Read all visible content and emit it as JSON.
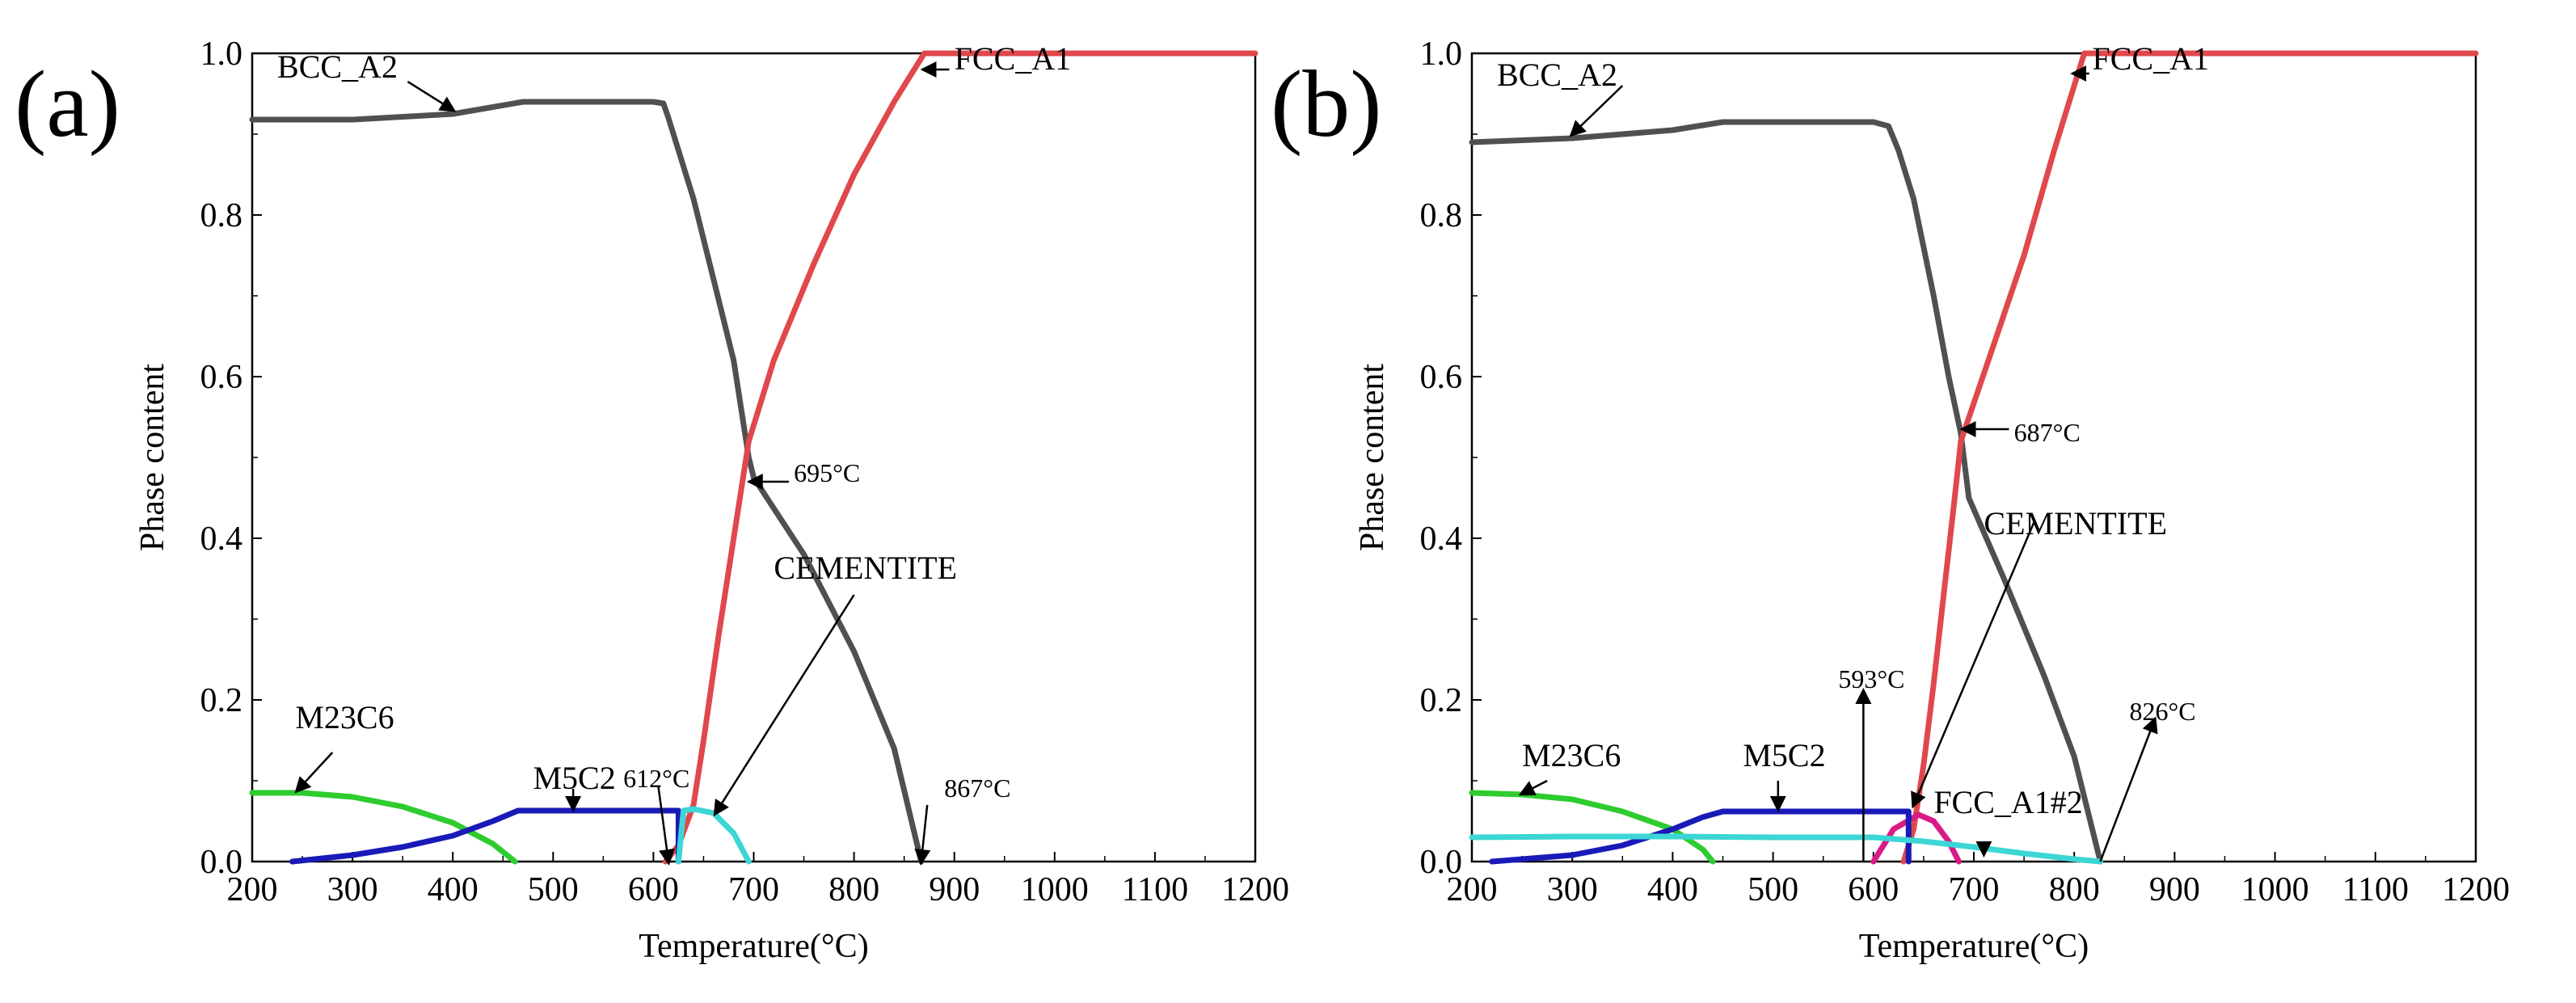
{
  "chart_data": [
    {
      "panel_label": "(a)",
      "type": "line",
      "xlabel": "Temperature(°C)",
      "ylabel": "Phase content",
      "xlim": [
        200,
        1200
      ],
      "ylim": [
        0,
        1.0
      ],
      "xticks": [
        "200",
        "300",
        "400",
        "500",
        "600",
        "700",
        "800",
        "900",
        "1000",
        "1100",
        "1200"
      ],
      "yticks": [
        "0.0",
        "0.2",
        "0.4",
        "0.6",
        "0.8",
        "1.0"
      ],
      "series": [
        {
          "name": "BCC_A2",
          "color": "#505050",
          "points": [
            [
              200,
              0.918
            ],
            [
              300,
              0.918
            ],
            [
              400,
              0.925
            ],
            [
              470,
              0.94
            ],
            [
              500,
              0.94
            ],
            [
              550,
              0.94
            ],
            [
              600,
              0.94
            ],
            [
              610,
              0.938
            ],
            [
              615,
              0.92
            ],
            [
              625,
              0.88
            ],
            [
              640,
              0.82
            ],
            [
              660,
              0.72
            ],
            [
              680,
              0.62
            ],
            [
              695,
              0.5
            ],
            [
              700,
              0.475
            ],
            [
              750,
              0.38
            ],
            [
              800,
              0.26
            ],
            [
              840,
              0.14
            ],
            [
              867,
              0.0
            ]
          ]
        },
        {
          "name": "FCC_A1",
          "color": "#e0484c",
          "points": [
            [
              612,
              0.0
            ],
            [
              625,
              0.02
            ],
            [
              640,
              0.07
            ],
            [
              650,
              0.15
            ],
            [
              665,
              0.28
            ],
            [
              680,
              0.4
            ],
            [
              695,
              0.52
            ],
            [
              720,
              0.62
            ],
            [
              760,
              0.74
            ],
            [
              800,
              0.85
            ],
            [
              840,
              0.94
            ],
            [
              870,
              1.0
            ],
            [
              1200,
              1.0
            ]
          ]
        },
        {
          "name": "M23C6",
          "color": "#2ecc2e",
          "points": [
            [
              200,
              0.085
            ],
            [
              250,
              0.085
            ],
            [
              300,
              0.08
            ],
            [
              350,
              0.068
            ],
            [
              400,
              0.048
            ],
            [
              440,
              0.022
            ],
            [
              462,
              0.0
            ]
          ]
        },
        {
          "name": "M5C2",
          "color": "#1a1ab8",
          "points": [
            [
              240,
              0.0
            ],
            [
              300,
              0.008
            ],
            [
              350,
              0.018
            ],
            [
              400,
              0.032
            ],
            [
              440,
              0.05
            ],
            [
              465,
              0.063
            ],
            [
              500,
              0.063
            ],
            [
              600,
              0.063
            ],
            [
              620,
              0.063
            ],
            [
              625,
              0.063
            ],
            [
              625,
              0.0
            ]
          ]
        },
        {
          "name": "CEMENTITE",
          "color": "#3cd6d6",
          "points": [
            [
              625,
              0.0
            ],
            [
              630,
              0.063
            ],
            [
              640,
              0.065
            ],
            [
              660,
              0.06
            ],
            [
              680,
              0.035
            ],
            [
              695,
              0.0
            ]
          ]
        }
      ],
      "annotations": [
        {
          "text": "BCC_A2",
          "x": 225,
          "y": 0.97
        },
        {
          "text": "FCC_A1",
          "x": 900,
          "y": 0.98
        },
        {
          "text": "695°C",
          "x": 740,
          "y": 0.47
        },
        {
          "text": "CEMENTITE",
          "x": 720,
          "y": 0.35
        },
        {
          "text": "M23C6",
          "x": 243,
          "y": 0.165
        },
        {
          "text": "M5C2",
          "x": 480,
          "y": 0.09
        },
        {
          "text": "612°C",
          "x": 570,
          "y": 0.092
        },
        {
          "text": "867°C",
          "x": 890,
          "y": 0.08
        }
      ]
    },
    {
      "panel_label": "(b)",
      "type": "line",
      "xlabel": "Temperature(°C)",
      "ylabel": "Phase content",
      "xlim": [
        200,
        1200
      ],
      "ylim": [
        0,
        1.0
      ],
      "xticks": [
        "200",
        "300",
        "400",
        "500",
        "600",
        "700",
        "800",
        "900",
        "1000",
        "1100",
        "1200"
      ],
      "yticks": [
        "0.0",
        "0.2",
        "0.4",
        "0.6",
        "0.8",
        "1.0"
      ],
      "series": [
        {
          "name": "BCC_A2",
          "color": "#505050",
          "points": [
            [
              200,
              0.89
            ],
            [
              300,
              0.895
            ],
            [
              400,
              0.905
            ],
            [
              450,
              0.915
            ],
            [
              500,
              0.915
            ],
            [
              550,
              0.915
            ],
            [
              600,
              0.915
            ],
            [
              615,
              0.91
            ],
            [
              625,
              0.88
            ],
            [
              640,
              0.82
            ],
            [
              660,
              0.7
            ],
            [
              675,
              0.6
            ],
            [
              687,
              0.53
            ],
            [
              695,
              0.45
            ],
            [
              730,
              0.35
            ],
            [
              770,
              0.23
            ],
            [
              800,
              0.13
            ],
            [
              826,
              0.0
            ]
          ]
        },
        {
          "name": "FCC_A1",
          "color": "#e0484c",
          "points": [
            [
              630,
              0.0
            ],
            [
              640,
              0.04
            ],
            [
              650,
              0.12
            ],
            [
              660,
              0.22
            ],
            [
              670,
              0.33
            ],
            [
              680,
              0.44
            ],
            [
              687,
              0.52
            ],
            [
              720,
              0.64
            ],
            [
              750,
              0.75
            ],
            [
              780,
              0.88
            ],
            [
              810,
              1.0
            ],
            [
              1200,
              1.0
            ]
          ]
        },
        {
          "name": "FCC_A1#2",
          "color": "#d81b86",
          "points": [
            [
              600,
              0.0
            ],
            [
              620,
              0.04
            ],
            [
              645,
              0.058
            ],
            [
              660,
              0.05
            ],
            [
              675,
              0.025
            ],
            [
              685,
              0.0
            ]
          ]
        },
        {
          "name": "M23C6",
          "color": "#2ecc2e",
          "points": [
            [
              200,
              0.085
            ],
            [
              250,
              0.083
            ],
            [
              300,
              0.077
            ],
            [
              350,
              0.062
            ],
            [
              400,
              0.04
            ],
            [
              430,
              0.015
            ],
            [
              440,
              0.0
            ]
          ]
        },
        {
          "name": "M5C2",
          "color": "#1a1ab8",
          "points": [
            [
              220,
              0.0
            ],
            [
              300,
              0.008
            ],
            [
              350,
              0.02
            ],
            [
              400,
              0.04
            ],
            [
              430,
              0.055
            ],
            [
              450,
              0.062
            ],
            [
              500,
              0.062
            ],
            [
              600,
              0.062
            ],
            [
              635,
              0.062
            ],
            [
              635,
              0.0
            ]
          ]
        },
        {
          "name": "CEMENTITE",
          "color": "#3cd6d6",
          "points": [
            [
              200,
              0.03
            ],
            [
              300,
              0.031
            ],
            [
              400,
              0.031
            ],
            [
              500,
              0.03
            ],
            [
              600,
              0.03
            ],
            [
              650,
              0.025
            ],
            [
              700,
              0.018
            ],
            [
              750,
              0.01
            ],
            [
              800,
              0.003
            ],
            [
              826,
              0.0
            ]
          ]
        }
      ],
      "annotations": [
        {
          "text": "BCC_A2",
          "x": 225,
          "y": 0.96
        },
        {
          "text": "FCC_A1",
          "x": 818,
          "y": 0.98
        },
        {
          "text": "687°C",
          "x": 740,
          "y": 0.52
        },
        {
          "text": "CEMENTITE",
          "x": 710,
          "y": 0.405
        },
        {
          "text": "593°C",
          "x": 565,
          "y": 0.215
        },
        {
          "text": "826°C",
          "x": 855,
          "y": 0.175
        },
        {
          "text": "M23C6",
          "x": 250,
          "y": 0.118
        },
        {
          "text": "M5C2",
          "x": 470,
          "y": 0.118
        },
        {
          "text": "FCC_A1#2",
          "x": 660,
          "y": 0.06
        }
      ]
    }
  ]
}
